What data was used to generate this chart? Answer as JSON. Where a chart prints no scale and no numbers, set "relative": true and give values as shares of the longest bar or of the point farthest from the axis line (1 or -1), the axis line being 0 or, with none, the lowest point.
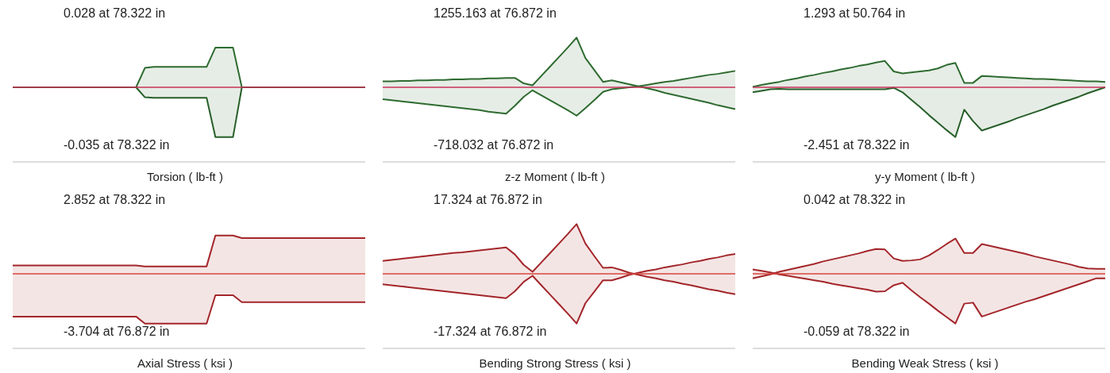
{
  "chart_data": [
    {
      "type": "area",
      "relative": true,
      "xlabel": "Torsion ( lb-ft )",
      "annotations": [
        "0.028 at 78.322 in",
        "-0.035 at 78.322 in"
      ],
      "tick_labels": false,
      "categories": [
        null,
        null,
        null,
        null,
        null,
        null,
        null,
        null,
        null,
        null,
        null,
        null,
        null,
        null,
        null,
        null,
        null,
        null,
        null,
        null,
        null,
        null,
        null,
        null,
        null,
        null,
        null,
        null,
        null,
        null,
        null,
        null,
        null,
        null,
        null,
        null,
        null,
        null,
        null,
        null,
        null
      ],
      "ref_lines": [
        {
          "axis": "y",
          "value": 0,
          "color": "#c8325a"
        }
      ],
      "series": [
        {
          "color": "#2e6b30",
          "values": [
            0,
            0,
            0,
            0,
            0,
            0,
            0,
            0,
            0,
            0,
            0,
            0,
            0,
            0,
            0,
            0.39,
            0.41,
            0.41,
            0.41,
            0.41,
            0.41,
            0.41,
            0.41,
            0.8,
            0.8,
            0.8,
            0,
            0,
            0,
            0,
            0,
            0,
            0,
            0,
            0,
            0,
            0,
            0,
            0,
            0,
            0
          ]
        },
        {
          "color": "#285f2a",
          "values": [
            0,
            0,
            0,
            0,
            0,
            0,
            0,
            0,
            0,
            0,
            0,
            0,
            0,
            0,
            0,
            -0.2,
            -0.21,
            -0.21,
            -0.21,
            -0.21,
            -0.21,
            -0.21,
            -0.21,
            -1,
            -1,
            -1,
            0,
            0,
            0,
            0,
            0,
            0,
            0,
            0,
            0,
            0,
            0,
            0,
            0,
            0,
            0
          ]
        }
      ]
    },
    {
      "type": "area",
      "relative": true,
      "xlabel": "z-z Moment ( lb-ft )",
      "annotations": [
        "1255.163 at 76.872 in",
        "-718.032 at 76.872 in"
      ],
      "tick_labels": false,
      "categories": [
        null,
        null,
        null,
        null,
        null,
        null,
        null,
        null,
        null,
        null,
        null,
        null,
        null,
        null,
        null,
        null,
        null,
        null,
        null,
        null,
        null,
        null,
        null,
        null,
        null,
        null,
        null,
        null,
        null,
        null,
        null,
        null,
        null,
        null,
        null,
        null,
        null,
        null,
        null,
        null,
        null
      ],
      "ref_lines": [
        {
          "axis": "y",
          "value": 0,
          "color": "#c8325a"
        }
      ],
      "series": [
        {
          "color": "#2e6b30",
          "values": [
            0.12,
            0.12,
            0.13,
            0.13,
            0.14,
            0.14,
            0.15,
            0.15,
            0.16,
            0.16,
            0.17,
            0.17,
            0.18,
            0.18,
            0.19,
            0.19,
            0.08,
            0.04,
            0.23,
            0.42,
            0.61,
            0.8,
            1,
            0.59,
            0.35,
            0.11,
            0.14,
            0.1,
            0.06,
            0.02,
            -0.02,
            -0.06,
            -0.11,
            -0.15,
            -0.19,
            -0.23,
            -0.27,
            -0.31,
            -0.36,
            -0.4,
            -0.44
          ]
        },
        {
          "color": "#2e6b30",
          "values": [
            -0.24,
            -0.26,
            -0.28,
            -0.3,
            -0.32,
            -0.34,
            -0.36,
            -0.38,
            -0.4,
            -0.42,
            -0.44,
            -0.46,
            -0.49,
            -0.51,
            -0.53,
            -0.37,
            -0.19,
            -0.06,
            -0.16,
            -0.26,
            -0.36,
            -0.46,
            -0.57,
            -0.42,
            -0.26,
            -0.09,
            -0.04,
            -0.02,
            0,
            0.02,
            0.05,
            0.08,
            0.11,
            0.13,
            0.16,
            0.19,
            0.22,
            0.25,
            0.27,
            0.3,
            0.33
          ]
        }
      ]
    },
    {
      "type": "area",
      "relative": true,
      "xlabel": "y-y Moment ( lb-ft )",
      "annotations": [
        "1.293 at 50.764 in",
        "-2.451 at 78.322 in"
      ],
      "tick_labels": false,
      "categories": [
        null,
        null,
        null,
        null,
        null,
        null,
        null,
        null,
        null,
        null,
        null,
        null,
        null,
        null,
        null,
        null,
        null,
        null,
        null,
        null,
        null,
        null,
        null,
        null,
        null,
        null,
        null,
        null,
        null,
        null,
        null,
        null,
        null,
        null,
        null,
        null,
        null,
        null,
        null,
        null,
        null
      ],
      "ref_lines": [
        {
          "axis": "y",
          "value": 0,
          "color": "#c8325a"
        }
      ],
      "series": [
        {
          "color": "#2e6b30",
          "values": [
            0.01,
            0.05,
            0.08,
            0.11,
            0.15,
            0.18,
            0.22,
            0.25,
            0.29,
            0.32,
            0.36,
            0.39,
            0.43,
            0.46,
            0.5,
            0.53,
            0.32,
            0.28,
            0.3,
            0.32,
            0.34,
            0.38,
            0.45,
            0.49,
            0.09,
            0.09,
            0.23,
            0.22,
            0.21,
            0.2,
            0.19,
            0.18,
            0.17,
            0.17,
            0.16,
            0.15,
            0.14,
            0.13,
            0.12,
            0.12,
            0.11
          ]
        },
        {
          "color": "#285f2a",
          "values": [
            -0.1,
            -0.07,
            -0.04,
            -0.03,
            -0.04,
            -0.04,
            -0.04,
            -0.04,
            -0.04,
            -0.04,
            -0.04,
            -0.04,
            -0.04,
            -0.04,
            -0.04,
            -0.04,
            -0.01,
            -0.1,
            -0.25,
            -0.4,
            -0.56,
            -0.71,
            -0.86,
            -1,
            -0.45,
            -0.68,
            -0.87,
            -0.81,
            -0.75,
            -0.69,
            -0.62,
            -0.56,
            -0.5,
            -0.44,
            -0.37,
            -0.31,
            -0.25,
            -0.19,
            -0.12,
            -0.06,
            0
          ]
        }
      ]
    },
    {
      "type": "area",
      "relative": true,
      "xlabel": "Axial Stress ( ksi )",
      "annotations": [
        "2.852 at 78.322 in",
        "-3.704 at 76.872 in"
      ],
      "tick_labels": false,
      "categories": [
        null,
        null,
        null,
        null,
        null,
        null,
        null,
        null,
        null,
        null,
        null,
        null,
        null,
        null,
        null,
        null,
        null,
        null,
        null,
        null,
        null,
        null,
        null,
        null,
        null,
        null,
        null,
        null,
        null,
        null,
        null,
        null,
        null,
        null,
        null,
        null,
        null,
        null,
        null,
        null,
        null
      ],
      "ref_lines": [
        {
          "axis": "y",
          "value": 0,
          "color": "#d9453b"
        }
      ],
      "series": [
        {
          "color": "#a3262a",
          "values": [
            0.17,
            0.17,
            0.17,
            0.17,
            0.17,
            0.17,
            0.17,
            0.17,
            0.17,
            0.17,
            0.17,
            0.17,
            0.17,
            0.17,
            0.17,
            0.15,
            0.15,
            0.15,
            0.15,
            0.15,
            0.15,
            0.15,
            0.15,
            0.77,
            0.77,
            0.77,
            0.72,
            0.72,
            0.72,
            0.72,
            0.72,
            0.72,
            0.72,
            0.72,
            0.72,
            0.72,
            0.72,
            0.72,
            0.72,
            0.72,
            0.72
          ]
        },
        {
          "color": "#a3262a",
          "values": [
            -0.86,
            -0.86,
            -0.86,
            -0.86,
            -0.86,
            -0.86,
            -0.86,
            -0.86,
            -0.86,
            -0.86,
            -0.86,
            -0.86,
            -0.86,
            -0.86,
            -0.86,
            -1,
            -1,
            -1,
            -1,
            -1,
            -1,
            -1,
            -1,
            -0.43,
            -0.43,
            -0.43,
            -0.57,
            -0.57,
            -0.57,
            -0.57,
            -0.57,
            -0.57,
            -0.57,
            -0.57,
            -0.57,
            -0.57,
            -0.57,
            -0.57,
            -0.57,
            -0.57,
            -0.57
          ]
        }
      ]
    },
    {
      "type": "area",
      "relative": true,
      "xlabel": "Bending Strong Stress ( ksi )",
      "annotations": [
        "17.324 at 76.872 in",
        "-17.324 at 76.872 in"
      ],
      "tick_labels": false,
      "categories": [
        null,
        null,
        null,
        null,
        null,
        null,
        null,
        null,
        null,
        null,
        null,
        null,
        null,
        null,
        null,
        null,
        null,
        null,
        null,
        null,
        null,
        null,
        null,
        null,
        null,
        null,
        null,
        null,
        null,
        null,
        null,
        null,
        null,
        null,
        null,
        null,
        null,
        null,
        null,
        null,
        null
      ],
      "ref_lines": [
        {
          "axis": "y",
          "value": 0,
          "color": "#d9453b"
        }
      ],
      "series": [
        {
          "color": "#a3262a",
          "values": [
            0.26,
            0.28,
            0.3,
            0.32,
            0.34,
            0.36,
            0.38,
            0.4,
            0.42,
            0.43,
            0.45,
            0.47,
            0.49,
            0.51,
            0.53,
            0.39,
            0.18,
            0.04,
            0.23,
            0.42,
            0.61,
            0.8,
            1,
            0.61,
            0.36,
            0.12,
            0.13,
            0.08,
            0.02,
            -0.02,
            -0.06,
            -0.09,
            -0.13,
            -0.16,
            -0.2,
            -0.23,
            -0.27,
            -0.31,
            -0.34,
            -0.38,
            -0.41
          ]
        },
        {
          "color": "#a3262a",
          "values": [
            -0.21,
            -0.23,
            -0.25,
            -0.27,
            -0.29,
            -0.31,
            -0.33,
            -0.35,
            -0.37,
            -0.39,
            -0.41,
            -0.43,
            -0.45,
            -0.47,
            -0.49,
            -0.35,
            -0.16,
            -0.04,
            -0.23,
            -0.42,
            -0.61,
            -0.8,
            -1,
            -0.59,
            -0.36,
            -0.13,
            -0.13,
            -0.08,
            -0.02,
            0.02,
            0.06,
            0.09,
            0.13,
            0.16,
            0.19,
            0.23,
            0.26,
            0.3,
            0.33,
            0.37,
            0.4
          ]
        }
      ]
    },
    {
      "type": "area",
      "relative": true,
      "xlabel": "Bending Weak Stress ( ksi )",
      "annotations": [
        "0.042 at 78.322 in",
        "-0.059 at 78.322 in"
      ],
      "tick_labels": false,
      "categories": [
        null,
        null,
        null,
        null,
        null,
        null,
        null,
        null,
        null,
        null,
        null,
        null,
        null,
        null,
        null,
        null,
        null,
        null,
        null,
        null,
        null,
        null,
        null,
        null,
        null,
        null,
        null,
        null,
        null,
        null,
        null,
        null,
        null,
        null,
        null,
        null,
        null,
        null,
        null,
        null,
        null
      ],
      "ref_lines": [
        {
          "axis": "y",
          "value": 0,
          "color": "#d9453b"
        }
      ],
      "series": [
        {
          "color": "#a3262a",
          "values": [
            -0.09,
            -0.05,
            -0.01,
            0.04,
            0.08,
            0.12,
            0.16,
            0.2,
            0.25,
            0.29,
            0.33,
            0.37,
            0.41,
            0.46,
            0.5,
            0.49,
            0.31,
            0.26,
            0.27,
            0.29,
            0.37,
            0.48,
            0.6,
            0.71,
            0.42,
            0.42,
            0.6,
            0.56,
            0.52,
            0.48,
            0.44,
            0.4,
            0.35,
            0.31,
            0.27,
            0.23,
            0.19,
            0.14,
            0.11,
            0.1,
            0.1
          ]
        },
        {
          "color": "#a3262a",
          "values": [
            0.09,
            0.06,
            0.03,
            -0.01,
            -0.04,
            -0.07,
            -0.1,
            -0.13,
            -0.16,
            -0.2,
            -0.23,
            -0.26,
            -0.29,
            -0.32,
            -0.36,
            -0.35,
            -0.23,
            -0.18,
            -0.33,
            -0.47,
            -0.6,
            -0.74,
            -0.87,
            -1,
            -0.6,
            -0.58,
            -0.86,
            -0.8,
            -0.74,
            -0.68,
            -0.62,
            -0.56,
            -0.51,
            -0.45,
            -0.39,
            -0.33,
            -0.27,
            -0.21,
            -0.15,
            -0.09,
            -0.09
          ]
        }
      ]
    }
  ]
}
